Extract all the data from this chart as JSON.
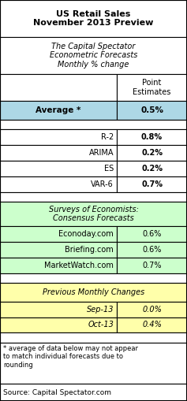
{
  "title": "US Retail Sales\nNovember 2013 Preview",
  "subtitle_line1": "The Capital Spectator",
  "subtitle_line2": "Econometric Forecasts",
  "subtitle_line3": "Monthly % change",
  "col_header": "Point\nEstimates",
  "average_label": "Average *",
  "average_value": "0.5%",
  "econometric_rows": [
    [
      "R-2",
      "0.8%"
    ],
    [
      "ARIMA",
      "0.2%"
    ],
    [
      "ES",
      "0.2%"
    ],
    [
      "VAR-6",
      "0.7%"
    ]
  ],
  "survey_header": "Surveys of Economists:\nConsensus Forecasts",
  "survey_rows": [
    [
      "Econoday.com",
      "0.6%"
    ],
    [
      "Briefing.com",
      "0.6%"
    ],
    [
      "MarketWatch.com",
      "0.7%"
    ]
  ],
  "prev_header": "Previous Monthly Changes",
  "prev_rows": [
    [
      "Sep-13",
      "0.0%"
    ],
    [
      "Oct-13",
      "0.4%"
    ]
  ],
  "footnote": "* average of data below may not appear\nto match individual forecasts due to\nrounding",
  "source": "Source: Capital Spectator.com",
  "col_split": 0.625,
  "row_heights": {
    "title": 52,
    "subtitle": 52,
    "col_header": 38,
    "average": 26,
    "blank1": 14,
    "data": 22,
    "blank2": 14,
    "survey_hdr": 34,
    "survey_data": 22,
    "blank3": 14,
    "prev_hdr": 26,
    "prev_data": 22,
    "blank4": 14,
    "footnote": 58,
    "source": 24
  },
  "colors": {
    "average_bg": "#add8e6",
    "survey_bg": "#ccffcc",
    "prev_bg": "#ffffaa",
    "white": "#ffffff"
  },
  "lw": 0.8,
  "title_fontsize": 8.0,
  "subtitle_fontsize": 7.0,
  "data_fontsize": 7.0,
  "footnote_fontsize": 6.0
}
